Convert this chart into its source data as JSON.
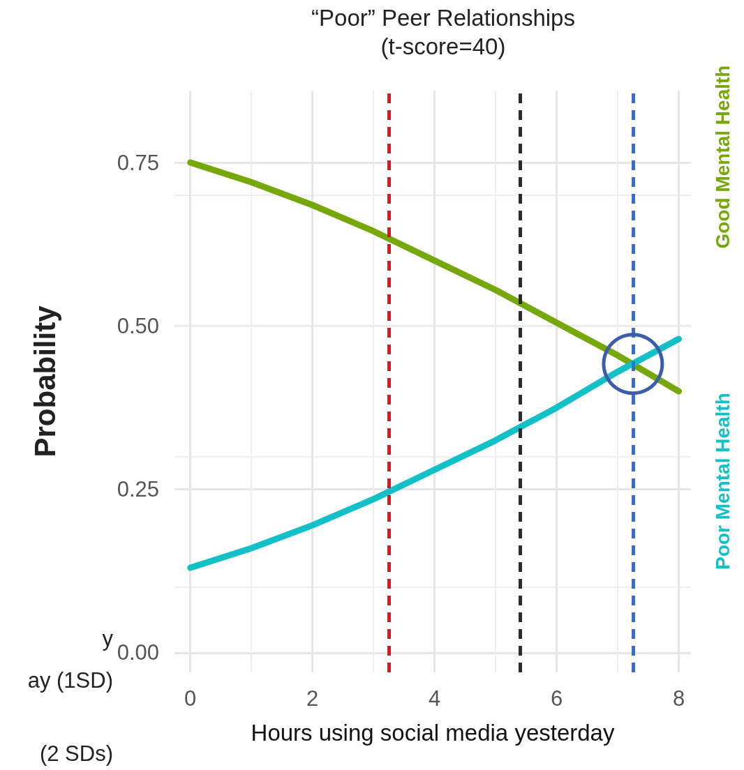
{
  "chart_data": {
    "type": "line",
    "title": "“Poor” Peer Relationships",
    "subtitle": "(t-score=40)",
    "xlabel": "Hours using social media yesterday",
    "ylabel": "Probability",
    "x": [
      0,
      1,
      2,
      3,
      4,
      5,
      6,
      7,
      8
    ],
    "series": [
      {
        "name": "Good Mental Health",
        "color": "#76a80c",
        "values": [
          0.75,
          0.72,
          0.685,
          0.645,
          0.6,
          0.555,
          0.505,
          0.455,
          0.4
        ]
      },
      {
        "name": "Poor Mental Health",
        "color": "#14c0c8",
        "values": [
          0.13,
          0.16,
          0.195,
          0.235,
          0.28,
          0.325,
          0.375,
          0.43,
          0.48
        ]
      }
    ],
    "xlim": [
      -0.26,
      8.2
    ],
    "xticks": [
      0,
      2,
      4,
      6,
      8
    ],
    "ylim": [
      -0.03,
      0.86
    ],
    "yticks": [
      {
        "value": 0,
        "label": "0.00"
      },
      0.25,
      {
        "value": 0.5,
        "label": "0.50"
      },
      0.75
    ],
    "ref_lines": [
      {
        "axis": "x",
        "value": 3.25,
        "color": "#e3141b",
        "line_style": "dashed"
      },
      {
        "axis": "x",
        "value": 5.4,
        "color": "#2b2b2b",
        "line_style": "dashed"
      },
      {
        "axis": "x",
        "value": 7.25,
        "color": "#2e6fd8",
        "line_style": "dashed"
      }
    ],
    "annotations": [
      "y",
      "ay (1SD)",
      "(2 SDs)"
    ],
    "grid": true,
    "line_style": "solid",
    "legend": false
  }
}
